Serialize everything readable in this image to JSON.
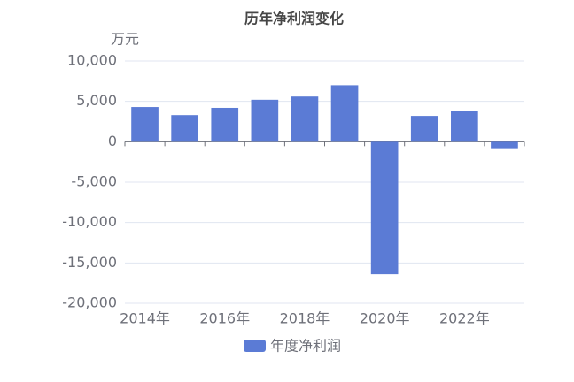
{
  "chart_data": {
    "type": "bar",
    "title": "历年净利润变化",
    "y_label": "万元",
    "categories": [
      "2014年",
      null,
      "2016年",
      null,
      "2018年",
      null,
      "2020年",
      null,
      "2022年",
      null
    ],
    "series": [
      {
        "name": "年度净利润",
        "color": "#5b7bd5",
        "values": [
          4300,
          3300,
          4200,
          5200,
          5600,
          7000,
          -16400,
          3200,
          3800,
          -800
        ]
      }
    ],
    "ylim": [
      -20000,
      10000
    ],
    "yticks": [
      {
        "value": -20000,
        "label": "-20,000"
      },
      {
        "value": -15000,
        "label": "-15,000"
      },
      {
        "value": -10000,
        "label": "-10,000"
      },
      {
        "value": -5000,
        "label": "-5,000"
      },
      0,
      {
        "value": 5000,
        "label": "5,000"
      },
      {
        "value": 10000,
        "label": "10,000"
      }
    ],
    "grid": true
  }
}
